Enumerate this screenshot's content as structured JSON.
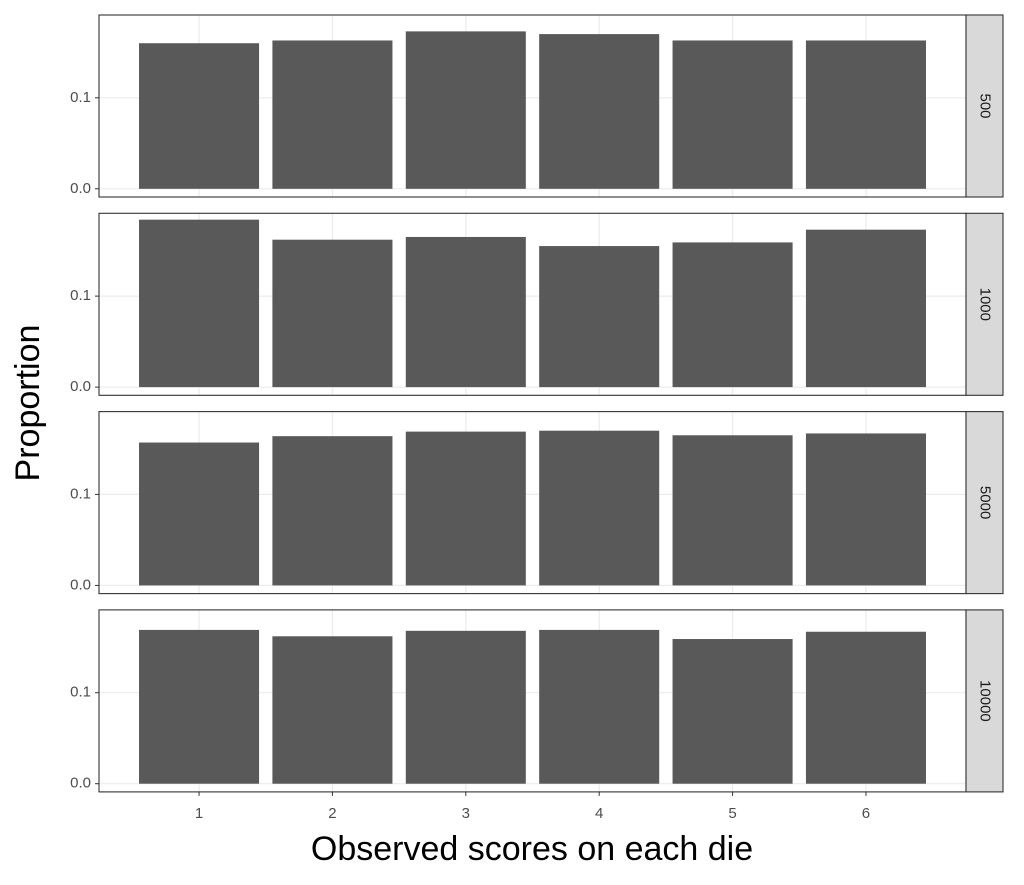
{
  "chart_data": {
    "type": "bar",
    "xlabel": "Observed scores on each die",
    "ylabel": "Proportion",
    "categories": [
      "1",
      "2",
      "3",
      "4",
      "5",
      "6"
    ],
    "color": "#595959",
    "ylim": [
      -0.009,
      0.191
    ],
    "yticks": [
      {
        "value": 0,
        "label": "0.0"
      },
      0.1
    ],
    "grid": true,
    "facets": [
      {
        "label": "500",
        "values": [
          0.16,
          0.163,
          0.173,
          0.17,
          0.163,
          0.163
        ]
      },
      {
        "label": "1000",
        "values": [
          0.184,
          0.162,
          0.165,
          0.155,
          0.159,
          0.173
        ]
      },
      {
        "label": "5000",
        "values": [
          0.157,
          0.164,
          0.169,
          0.17,
          0.165,
          0.167
        ]
      },
      {
        "label": "10000",
        "values": [
          0.169,
          0.162,
          0.168,
          0.169,
          0.159,
          0.167
        ]
      }
    ]
  }
}
